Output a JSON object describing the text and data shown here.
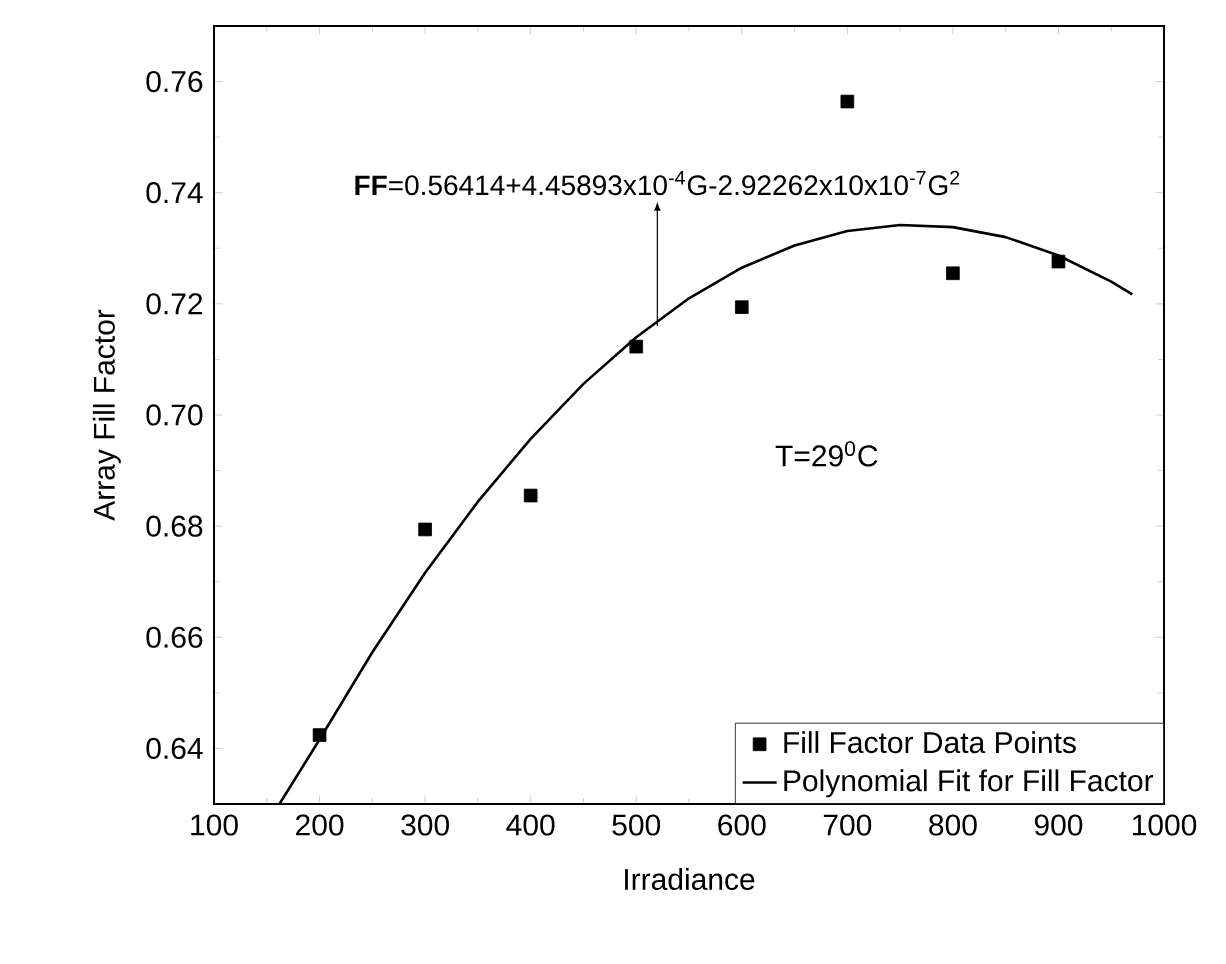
{
  "chart_data": {
    "type": "scatter",
    "xlabel": "Irradiance",
    "ylabel": "Array Fill Factor",
    "xlim": [
      100,
      1000
    ],
    "ylim": [
      0.63,
      0.77
    ],
    "xticks": [
      100,
      200,
      300,
      400,
      500,
      600,
      700,
      800,
      900,
      1000
    ],
    "yticks": [
      {
        "value": 0.64,
        "label": "0.64"
      },
      {
        "value": 0.66,
        "label": "0.66"
      },
      {
        "value": 0.68,
        "label": "0.68"
      },
      {
        "value": 0.7,
        "label": "0.70"
      },
      {
        "value": 0.72,
        "label": "0.72"
      },
      {
        "value": 0.74,
        "label": "0.74"
      },
      {
        "value": 0.76,
        "label": "0.76"
      }
    ],
    "grid": false,
    "legend": "bottom right",
    "series": [
      {
        "name": "Fill Factor Data Points",
        "color": "#000000",
        "marker": "square",
        "x": [
          200,
          300,
          400,
          500,
          600,
          700,
          800,
          900
        ],
        "values": [
          0.6424,
          0.6794,
          0.6855,
          0.7123,
          0.7194,
          0.7564,
          0.7255,
          0.7276
        ]
      },
      {
        "name": "Polynomial Fit for Fill Factor",
        "type": "line",
        "color": "#000000",
        "marker": "none",
        "line_style": "solid",
        "x": [
          162,
          200,
          250,
          300,
          350,
          400,
          450,
          500,
          550,
          600,
          650,
          700,
          750,
          800,
          850,
          900,
          950,
          970
        ],
        "values": [
          0.63,
          0.6416,
          0.6573,
          0.6716,
          0.6844,
          0.6957,
          0.7056,
          0.714,
          0.721,
          0.7265,
          0.7305,
          0.7331,
          0.7342,
          0.7338,
          0.732,
          0.7287,
          0.724,
          0.7217
        ]
      }
    ],
    "annotations": [
      {
        "text": "**FF**=0.56414+4.45893x10$^{-4}$G-2.92262x10x10$^{-7}$G$^{2}$",
        "x": 520,
        "y": 0.716
      },
      "T=29$^{0}$C"
    ]
  }
}
